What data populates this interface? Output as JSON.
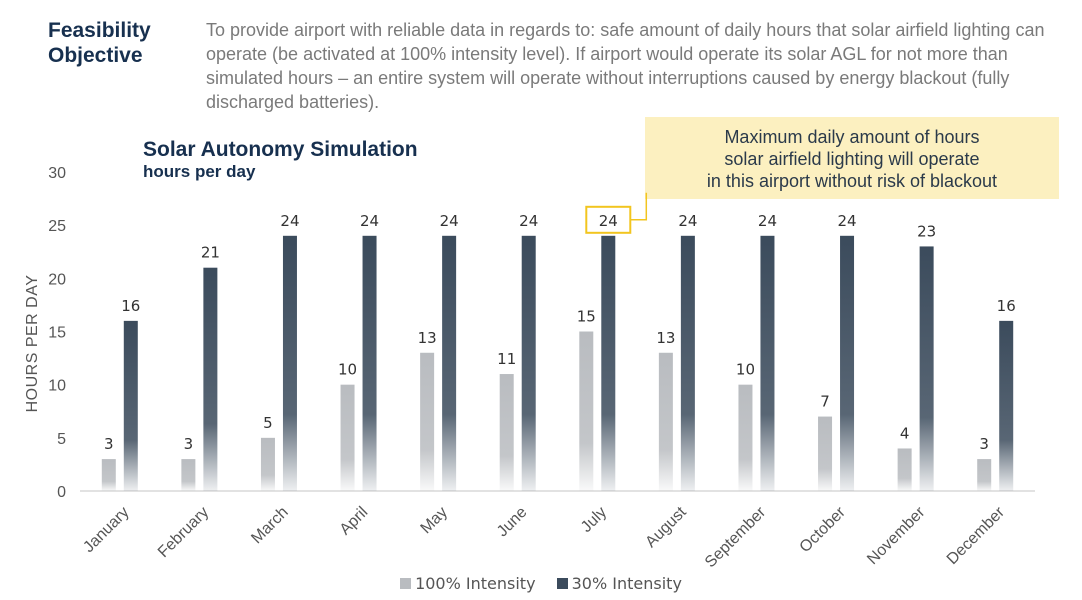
{
  "header": {
    "title_line1": "Feasibility",
    "title_line2": "Objective",
    "description": "To provide airport with reliable data in regards to: safe amount of daily hours that solar airfield lighting can operate (be activated at 100% intensity level). If airport would operate its solar AGL for not more than simulated hours – an entire system will operate without interruptions caused by energy blackout (fully discharged batteries)."
  },
  "callout": {
    "lines": [
      "Maximum daily amount of hours",
      "solar airfield lighting will operate",
      "in this airport without risk of blackout"
    ],
    "highlight_category": "July",
    "highlight_series": "30% Intensity"
  },
  "colors": {
    "series_100": "#b9bcc0",
    "series_30": "#3b4b5c",
    "highlight": "#f2c51f",
    "axis": "#d8d8d8",
    "text": "#555555",
    "title": "#17304f"
  },
  "chart_data": {
    "type": "bar",
    "title": "Solar Autonomy Simulation",
    "subtitle": "hours per day",
    "xlabel": "",
    "ylabel": "HOURS PER DAY",
    "ylim": [
      0,
      30
    ],
    "yticks": [
      0,
      5,
      10,
      15,
      20,
      25,
      30
    ],
    "grid": false,
    "legend_position": "bottom",
    "categories": [
      "January",
      "February",
      "March",
      "April",
      "May",
      "June",
      "July",
      "August",
      "September",
      "October",
      "November",
      "December"
    ],
    "series": [
      {
        "name": "100% Intensity",
        "values": [
          3,
          3,
          5,
          10,
          13,
          11,
          15,
          13,
          10,
          7,
          4,
          3
        ]
      },
      {
        "name": "30% Intensity",
        "values": [
          16,
          21,
          24,
          24,
          24,
          24,
          24,
          24,
          24,
          24,
          23,
          16
        ]
      }
    ]
  }
}
